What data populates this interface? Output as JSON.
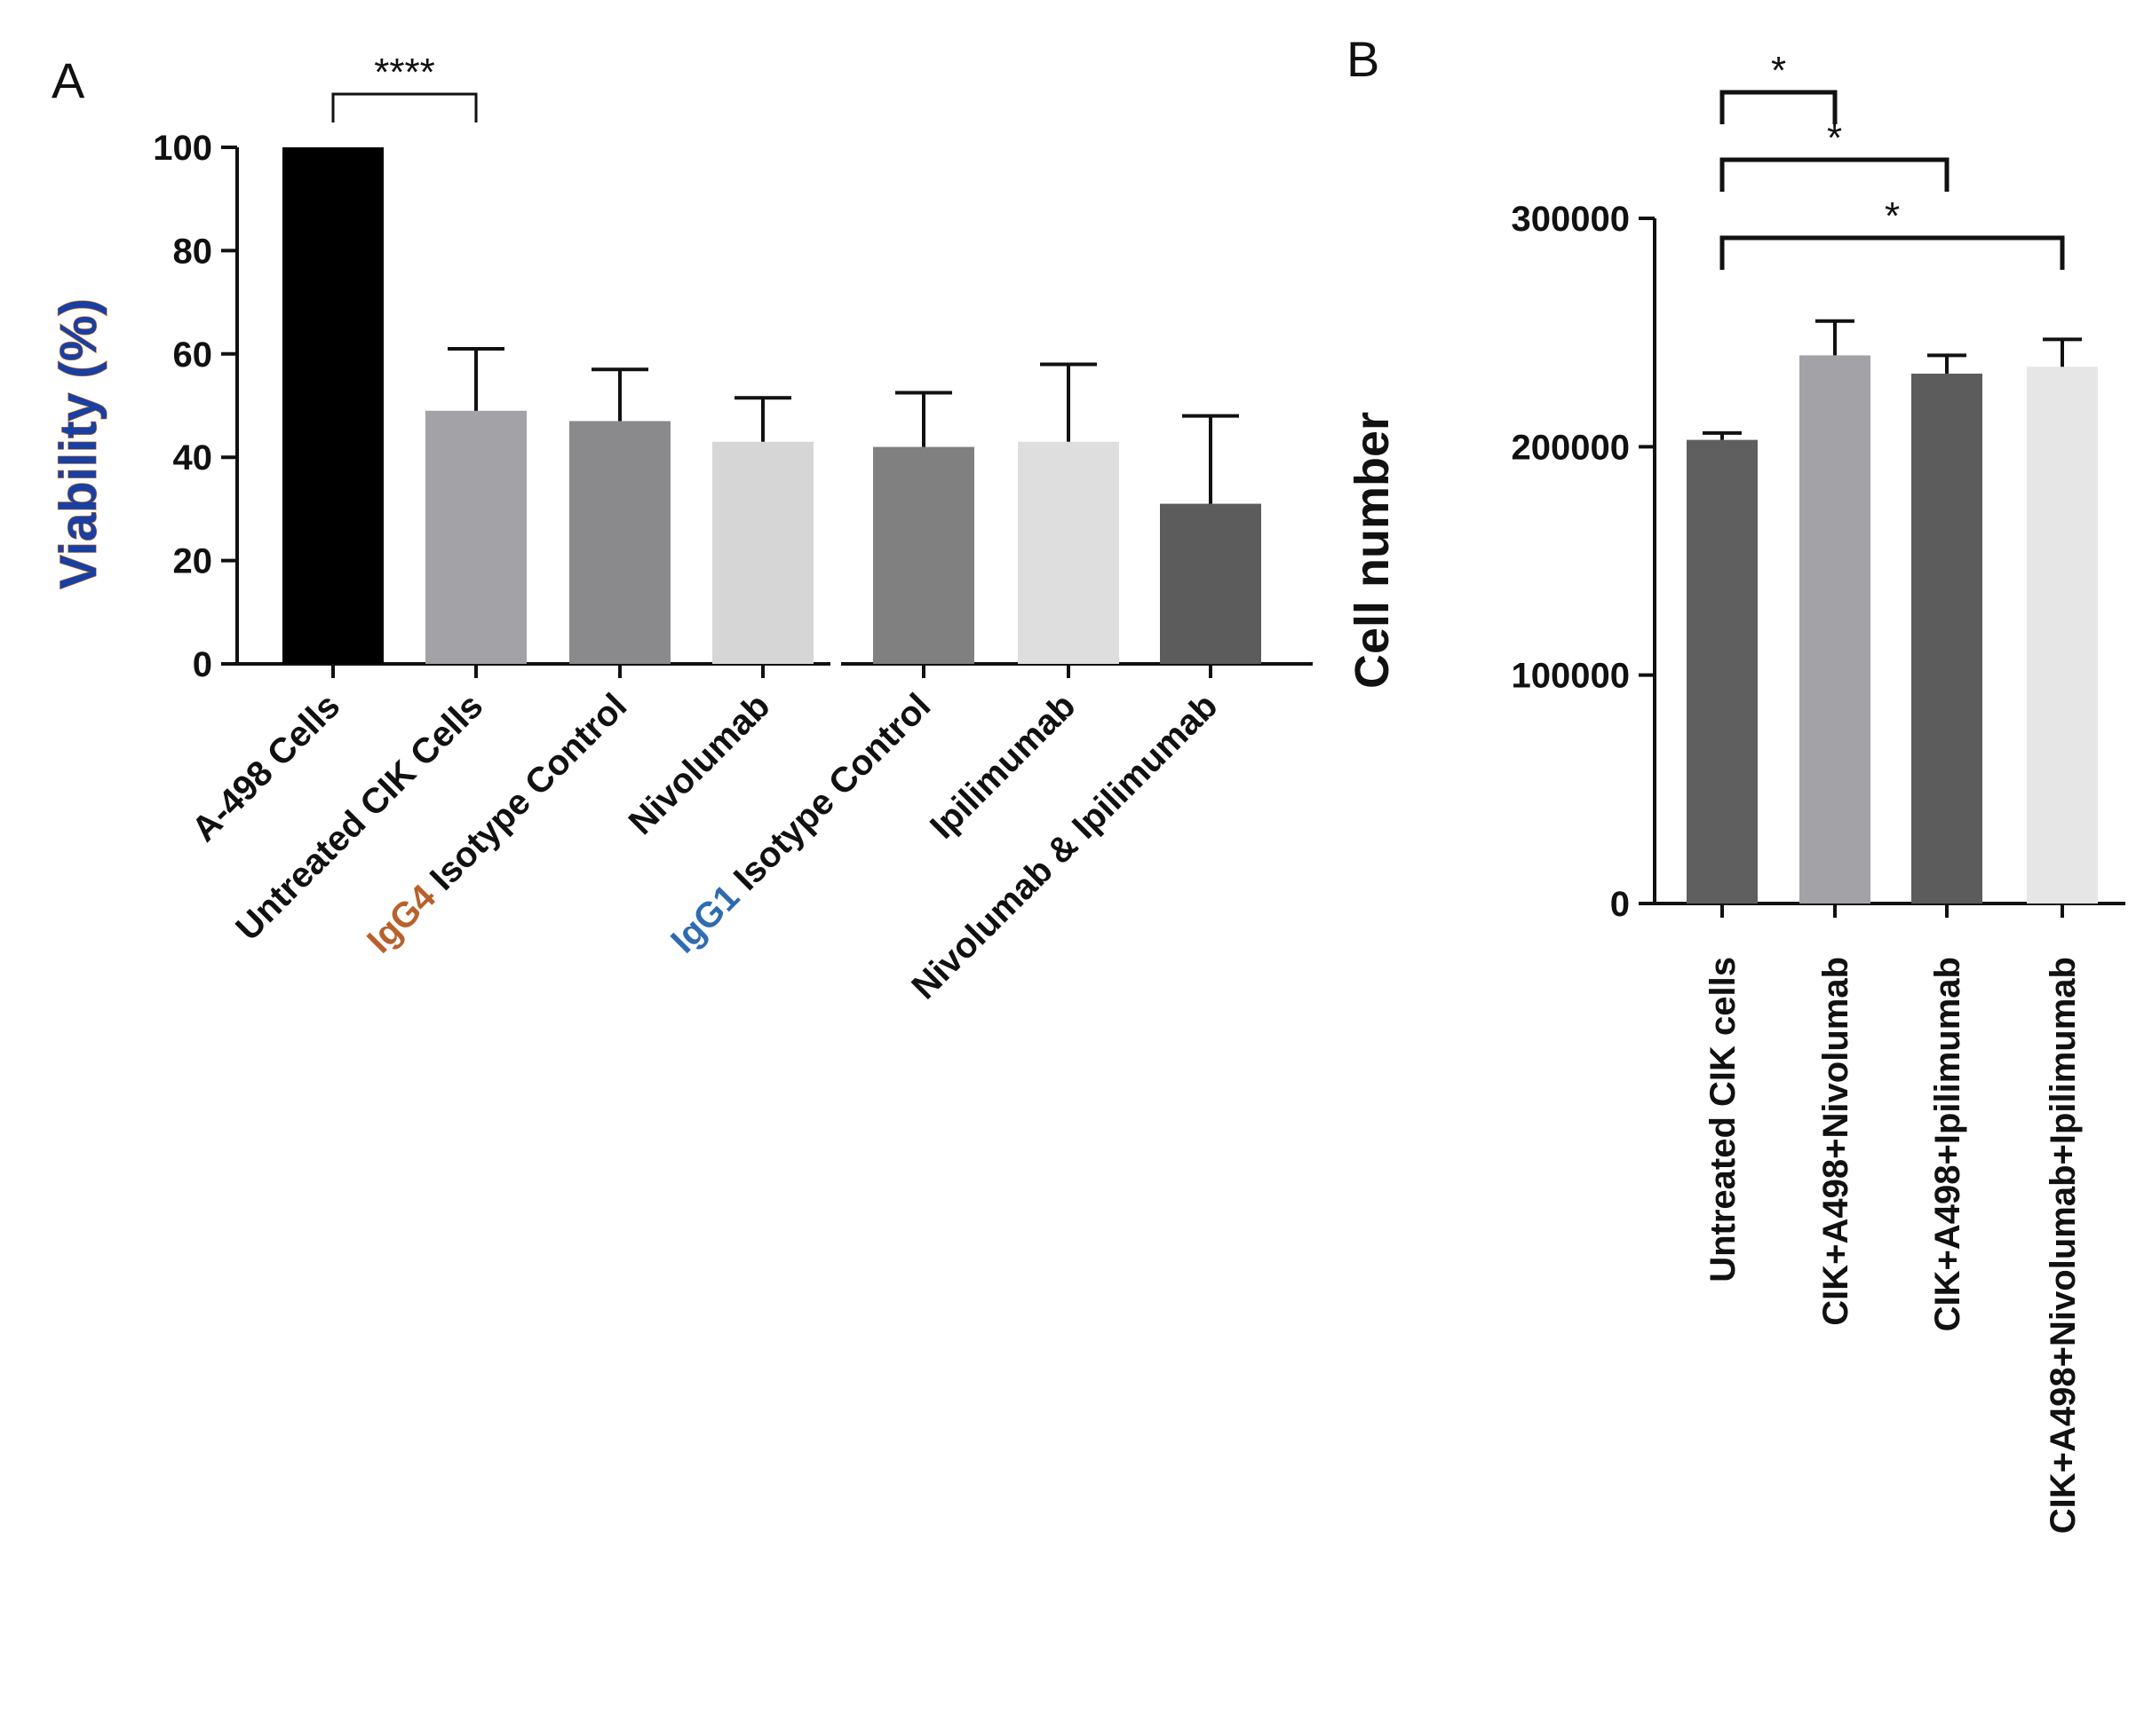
{
  "chart_data": [
    {
      "panel": "A",
      "type": "bar",
      "ylabel": "Viability (%)",
      "xlabel": "",
      "ylim": [
        0,
        100
      ],
      "yticks": [
        "0",
        "20",
        "40",
        "60",
        "80",
        "100"
      ],
      "categories": [
        {
          "prefix": "",
          "label": "A-498 Cells"
        },
        {
          "prefix": "",
          "label": "Untreated CIK Cells"
        },
        {
          "prefix": "IgG4",
          "label": "Isotype Control"
        },
        {
          "prefix": "",
          "label": "Nivolumab"
        },
        {
          "prefix": "IgG1",
          "label": "Isotype Control"
        },
        {
          "prefix": "",
          "label": "Ipilimumab"
        },
        {
          "prefix": "",
          "label": "Nivolumab & Ipilimumab"
        }
      ],
      "values": [
        100,
        49,
        47,
        43,
        42,
        43,
        31
      ],
      "errors": [
        0,
        12,
        10,
        8.5,
        10.5,
        15,
        17
      ],
      "bar_colors": [
        "#000000",
        "#a3a2a7",
        "#8a8a8c",
        "#d6d6d6",
        "#808080",
        "#dedede",
        "#5c5c5c"
      ],
      "significance": [
        {
          "from": 0,
          "to": 1,
          "label": "****"
        }
      ]
    },
    {
      "panel": "B",
      "type": "bar",
      "ylabel": "Cell number",
      "xlabel": "",
      "ylim": [
        0,
        300000
      ],
      "yticks": [
        "0",
        "100000",
        "200000",
        "300000"
      ],
      "categories": [
        "Untreated CIK cells",
        "CIK+A498+Nivolumab",
        "CIK+A498+Ipilimumab",
        "CIK+A498+Nivolumab+Ipilimumab"
      ],
      "values": [
        203000,
        240000,
        232000,
        235000
      ],
      "errors": [
        3000,
        15000,
        8000,
        12000
      ],
      "bar_colors": [
        "#5f5f5f",
        "#a3a2a7",
        "#5c5c5c",
        "#e6e6e6"
      ],
      "significance": [
        {
          "from": 0,
          "to": 1,
          "label": "*"
        },
        {
          "from": 0,
          "to": 2,
          "label": "*"
        },
        {
          "from": 0,
          "to": 3,
          "label": "*"
        }
      ]
    }
  ]
}
